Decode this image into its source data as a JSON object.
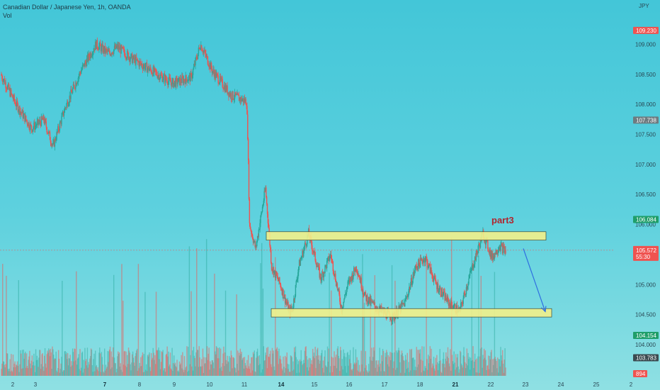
{
  "legend": {
    "symbol": "Canadian Dollar / Japanese Yen, 1h, OANDA",
    "volume_label": "Vol"
  },
  "currency_label": "JPY",
  "colors": {
    "up": "#26a69a",
    "down": "#ef5350",
    "zone_fill": "#f2f08a",
    "arrow": "#2f6fe0",
    "annotation": "#b0262f",
    "tag_red": "#ef5350",
    "tag_gray": "#6d7b80",
    "tag_green": "#1f9e6a",
    "tag_dark": "#3b4a50"
  },
  "chart_data": {
    "type": "candlestick",
    "symbol": "CADJPY",
    "timeframe": "1h",
    "y_range": [
      103.6,
      109.5
    ],
    "y_ticks": [
      "109.000",
      "108.500",
      "108.000",
      "107.500",
      "107.000",
      "106.500",
      "106.000",
      "105.000",
      "104.500",
      "104.000"
    ],
    "x_ticks": [
      {
        "label": "2",
        "bold": false
      },
      {
        "label": "3",
        "bold": false
      },
      {
        "label": "7",
        "bold": true
      },
      {
        "label": "8",
        "bold": false
      },
      {
        "label": "9",
        "bold": false
      },
      {
        "label": "10",
        "bold": false
      },
      {
        "label": "11",
        "bold": false
      },
      {
        "label": "14",
        "bold": true
      },
      {
        "label": "15",
        "bold": false
      },
      {
        "label": "16",
        "bold": false
      },
      {
        "label": "17",
        "bold": false
      },
      {
        "label": "18",
        "bold": false
      },
      {
        "label": "21",
        "bold": true
      },
      {
        "label": "22",
        "bold": false
      },
      {
        "label": "23",
        "bold": false
      },
      {
        "label": "24",
        "bold": false
      },
      {
        "label": "25",
        "bold": false
      },
      {
        "label": "2",
        "bold": false
      }
    ],
    "price_path": [
      [
        108.5,
        40
      ],
      [
        108.0,
        25
      ],
      [
        107.6,
        25
      ],
      [
        107.75,
        20
      ],
      [
        107.3,
        15
      ],
      [
        107.95,
        20
      ],
      [
        108.55,
        25
      ],
      [
        109.0,
        25
      ],
      [
        108.85,
        20
      ],
      [
        108.95,
        15
      ],
      [
        108.75,
        25
      ],
      [
        108.5,
        40
      ],
      [
        108.35,
        25
      ],
      [
        108.45,
        30
      ],
      [
        109.0,
        15
      ],
      [
        108.55,
        20
      ],
      [
        108.15,
        30
      ],
      [
        108.05,
        25
      ],
      [
        107.5,
        2
      ],
      [
        106.0,
        3
      ],
      [
        105.6,
        10
      ],
      [
        106.6,
        16
      ],
      [
        105.3,
        10
      ],
      [
        105.0,
        14
      ],
      [
        104.55,
        15
      ],
      [
        104.6,
        5
      ],
      [
        105.3,
        10
      ],
      [
        105.85,
        16
      ],
      [
        105.1,
        20
      ],
      [
        105.5,
        16
      ],
      [
        104.6,
        18
      ],
      [
        105.0,
        10
      ],
      [
        105.3,
        14
      ],
      [
        104.8,
        14
      ],
      [
        104.6,
        20
      ],
      [
        104.45,
        25
      ],
      [
        104.7,
        20
      ],
      [
        105.3,
        18
      ],
      [
        105.45,
        15
      ],
      [
        105.0,
        18
      ],
      [
        104.7,
        20
      ],
      [
        104.55,
        18
      ],
      [
        105.2,
        18
      ],
      [
        105.85,
        20
      ],
      [
        105.45,
        15
      ],
      [
        105.65,
        12
      ],
      [
        105.55,
        10
      ]
    ],
    "levels": [
      {
        "label": "109.230",
        "value": 109.23,
        "color": "tag_red"
      },
      {
        "label": "107.738",
        "value": 107.738,
        "color": "tag_gray"
      },
      {
        "label": "106.084",
        "value": 106.084,
        "color": "tag_green"
      },
      {
        "label": "104.154",
        "value": 104.154,
        "color": "tag_green"
      },
      {
        "label": "103.783",
        "value": 103.783,
        "color": "tag_dark"
      }
    ],
    "last_price": {
      "value": 105.572,
      "label": "105.572",
      "countdown": "55:30"
    },
    "volume_last": "894",
    "zones": [
      {
        "name": "resistance",
        "top": 105.88,
        "bottom": 105.74
      },
      {
        "name": "support",
        "top": 104.6,
        "bottom": 104.46
      }
    ],
    "annotation": "part3",
    "arrow": {
      "from_price": 105.6,
      "to_price": 104.55,
      "direction": "down"
    }
  }
}
